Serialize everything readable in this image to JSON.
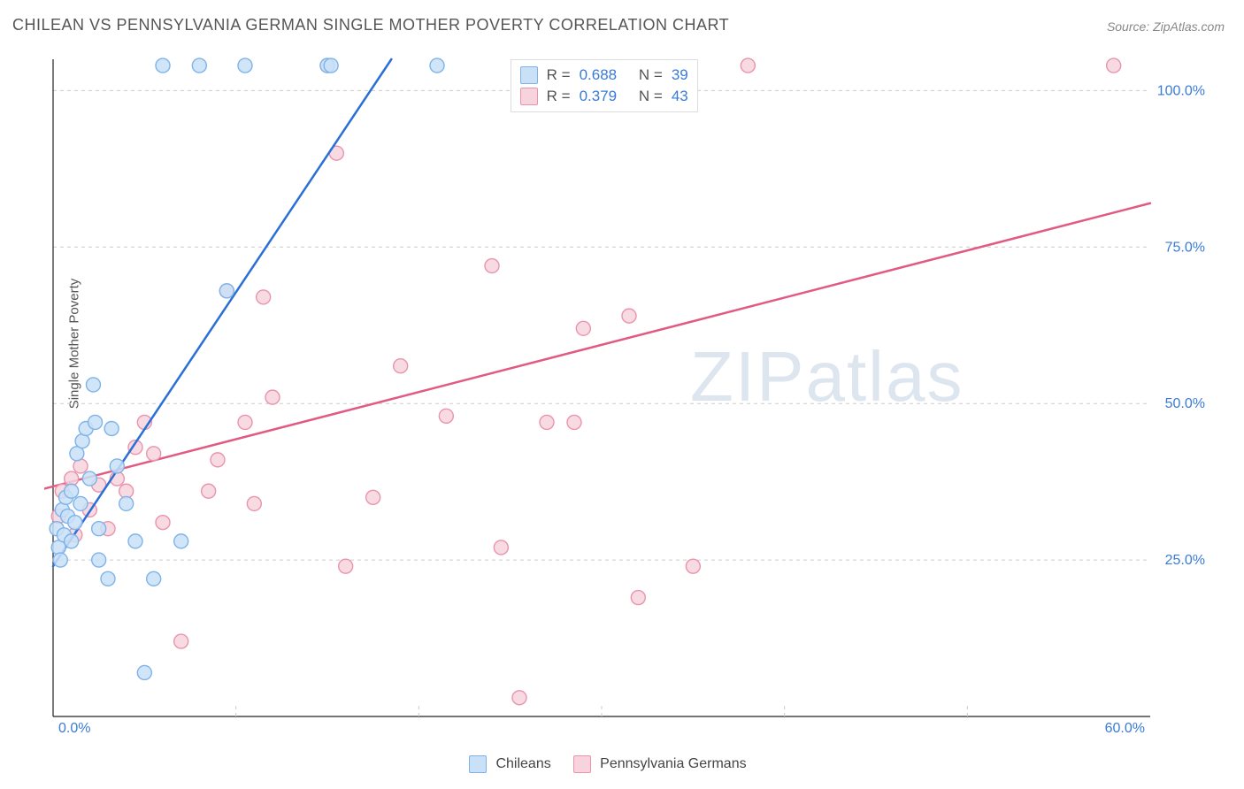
{
  "title": "CHILEAN VS PENNSYLVANIA GERMAN SINGLE MOTHER POVERTY CORRELATION CHART",
  "source_label": "Source: ZipAtlas.com",
  "ylabel": "Single Mother Poverty",
  "watermark_a": "ZIP",
  "watermark_b": "atlas",
  "chart": {
    "type": "scatter",
    "xlim": [
      0,
      60
    ],
    "ylim": [
      0,
      105
    ],
    "xtick_values": [
      0,
      60
    ],
    "xtick_labels": [
      "0.0%",
      "60.0%"
    ],
    "ytick_values": [
      25,
      50,
      75,
      100
    ],
    "ytick_labels": [
      "25.0%",
      "50.0%",
      "75.0%",
      "100.0%"
    ],
    "xgrid_major": [
      10,
      20,
      30,
      40,
      50
    ],
    "background": "#ffffff",
    "grid_color": "#cccccc",
    "axis_color": "#222222",
    "marker_radius": 8,
    "marker_stroke_width": 1.4,
    "line_width": 2.5
  },
  "series": {
    "chileans": {
      "label": "Chileans",
      "fill": "#c9e0f7",
      "stroke": "#7fb3e8",
      "line_color": "#2a6fd6",
      "R": "0.688",
      "N": "39",
      "trend": {
        "x1": 0,
        "y1": 24,
        "x2": 18.5,
        "y2": 105
      },
      "points": [
        [
          0.2,
          30
        ],
        [
          0.3,
          27
        ],
        [
          0.4,
          25
        ],
        [
          0.5,
          33
        ],
        [
          0.6,
          29
        ],
        [
          0.7,
          35
        ],
        [
          0.8,
          32
        ],
        [
          1.0,
          28
        ],
        [
          1.0,
          36
        ],
        [
          1.2,
          31
        ],
        [
          1.3,
          42
        ],
        [
          1.5,
          34
        ],
        [
          1.6,
          44
        ],
        [
          1.8,
          46
        ],
        [
          2.0,
          38
        ],
        [
          2.2,
          53
        ],
        [
          2.3,
          47
        ],
        [
          2.5,
          30
        ],
        [
          2.5,
          25
        ],
        [
          3.0,
          22
        ],
        [
          3.2,
          46
        ],
        [
          3.5,
          40
        ],
        [
          4.0,
          34
        ],
        [
          4.5,
          28
        ],
        [
          5.0,
          7
        ],
        [
          5.5,
          22
        ],
        [
          6.0,
          104
        ],
        [
          7.0,
          28
        ],
        [
          8.0,
          104
        ],
        [
          9.5,
          68
        ],
        [
          10.5,
          104
        ],
        [
          15.0,
          104
        ],
        [
          15.2,
          104
        ],
        [
          21.0,
          104
        ]
      ]
    },
    "pagermans": {
      "label": "Pennsylvania Germans",
      "fill": "#f7d3dd",
      "stroke": "#e994ac",
      "line_color": "#e05a82",
      "R": "0.379",
      "N": "43",
      "trend": {
        "x1": -1,
        "y1": 36,
        "x2": 60,
        "y2": 82
      },
      "points": [
        [
          0.3,
          32
        ],
        [
          0.5,
          36
        ],
        [
          1.0,
          38
        ],
        [
          1.2,
          29
        ],
        [
          1.5,
          40
        ],
        [
          2.0,
          33
        ],
        [
          2.5,
          37
        ],
        [
          3.0,
          30
        ],
        [
          3.5,
          38
        ],
        [
          4.0,
          36
        ],
        [
          4.5,
          43
        ],
        [
          5.0,
          47
        ],
        [
          5.5,
          42
        ],
        [
          6.0,
          31
        ],
        [
          7.0,
          12
        ],
        [
          8.5,
          36
        ],
        [
          9.0,
          41
        ],
        [
          9.5,
          68
        ],
        [
          10.5,
          47
        ],
        [
          11.0,
          34
        ],
        [
          11.5,
          67
        ],
        [
          12.0,
          51
        ],
        [
          15.0,
          104
        ],
        [
          15.5,
          90
        ],
        [
          16.0,
          24
        ],
        [
          17.5,
          35
        ],
        [
          19.0,
          56
        ],
        [
          21.5,
          48
        ],
        [
          24.0,
          72
        ],
        [
          24.5,
          27
        ],
        [
          25.5,
          3
        ],
        [
          27.0,
          47
        ],
        [
          28.5,
          47
        ],
        [
          29.0,
          62
        ],
        [
          31.5,
          64
        ],
        [
          32.0,
          19
        ],
        [
          35.0,
          24
        ],
        [
          38.0,
          104
        ],
        [
          58.0,
          104
        ]
      ]
    }
  },
  "bottom_legend": {
    "a": "Chileans",
    "b": "Pennsylvania Germans"
  },
  "stats_legend": {
    "r_label": "R =",
    "n_label": "N ="
  }
}
